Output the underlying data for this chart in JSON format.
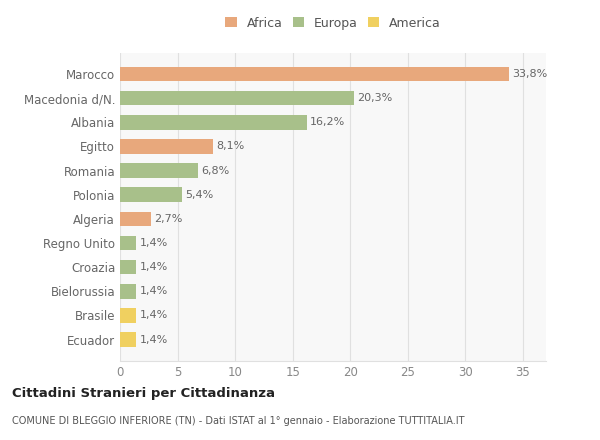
{
  "categories": [
    "Marocco",
    "Macedonia d/N.",
    "Albania",
    "Egitto",
    "Romania",
    "Polonia",
    "Algeria",
    "Regno Unito",
    "Croazia",
    "Bielorussia",
    "Brasile",
    "Ecuador"
  ],
  "values": [
    33.8,
    20.3,
    16.2,
    8.1,
    6.8,
    5.4,
    2.7,
    1.4,
    1.4,
    1.4,
    1.4,
    1.4
  ],
  "labels": [
    "33,8%",
    "20,3%",
    "16,2%",
    "8,1%",
    "6,8%",
    "5,4%",
    "2,7%",
    "1,4%",
    "1,4%",
    "1,4%",
    "1,4%",
    "1,4%"
  ],
  "colors": [
    "#e8a87c",
    "#a8c08a",
    "#a8c08a",
    "#e8a87c",
    "#a8c08a",
    "#a8c08a",
    "#e8a87c",
    "#a8c08a",
    "#a8c08a",
    "#a8c08a",
    "#f0d060",
    "#f0d060"
  ],
  "legend_labels": [
    "Africa",
    "Europa",
    "America"
  ],
  "legend_colors": [
    "#e8a87c",
    "#a8c08a",
    "#f0d060"
  ],
  "title": "Cittadini Stranieri per Cittadinanza",
  "subtitle": "COMUNE DI BLEGGIO INFERIORE (TN) - Dati ISTAT al 1° gennaio - Elaborazione TUTTITALIA.IT",
  "xlim": [
    0,
    37
  ],
  "xticks": [
    0,
    5,
    10,
    15,
    20,
    25,
    30,
    35
  ],
  "background_color": "#ffffff",
  "plot_bg_color": "#f8f8f8",
  "grid_color": "#e0e0e0",
  "bar_height": 0.6,
  "label_fontsize": 8,
  "tick_fontsize": 8.5,
  "label_color": "#666666",
  "tick_color": "#888888"
}
